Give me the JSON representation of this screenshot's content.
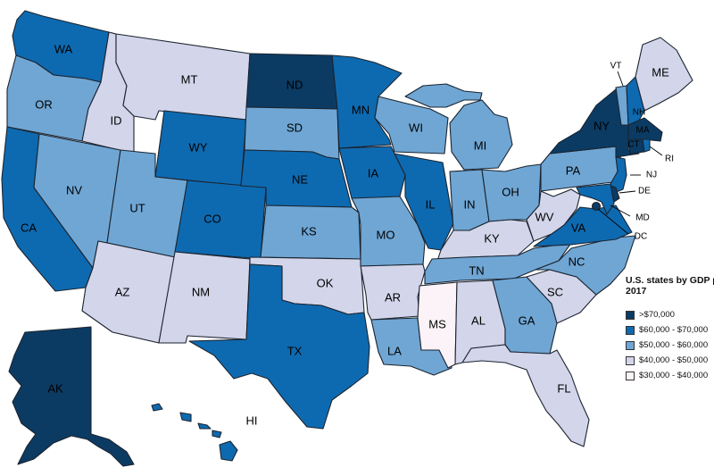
{
  "legend": {
    "title_line1": "U.S. states by GDP p",
    "title_line2": "2017",
    "items": [
      {
        "label": ">$70,000",
        "color": "#0b3b63"
      },
      {
        "label": "$60,000 - $70,000",
        "color": "#0e6ab0"
      },
      {
        "label": "$50,000 - $60,000",
        "color": "#6fa6d4"
      },
      {
        "label": "$40,000 - $50,000",
        "color": "#d3d5ea"
      },
      {
        "label": "$30,000 - $40,000",
        "color": "#fbf3f7"
      }
    ]
  },
  "states": [
    {
      "code": "WA",
      "bin": 1
    },
    {
      "code": "OR",
      "bin": 2
    },
    {
      "code": "CA",
      "bin": 1
    },
    {
      "code": "ID",
      "bin": 3
    },
    {
      "code": "NV",
      "bin": 2
    },
    {
      "code": "MT",
      "bin": 3
    },
    {
      "code": "WY",
      "bin": 1
    },
    {
      "code": "UT",
      "bin": 2
    },
    {
      "code": "AZ",
      "bin": 3
    },
    {
      "code": "CO",
      "bin": 1
    },
    {
      "code": "NM",
      "bin": 3
    },
    {
      "code": "ND",
      "bin": 0
    },
    {
      "code": "SD",
      "bin": 2
    },
    {
      "code": "NE",
      "bin": 1
    },
    {
      "code": "KS",
      "bin": 2
    },
    {
      "code": "OK",
      "bin": 3
    },
    {
      "code": "TX",
      "bin": 1
    },
    {
      "code": "MN",
      "bin": 1
    },
    {
      "code": "IA",
      "bin": 1
    },
    {
      "code": "MO",
      "bin": 2
    },
    {
      "code": "AR",
      "bin": 3
    },
    {
      "code": "LA",
      "bin": 2
    },
    {
      "code": "WI",
      "bin": 2
    },
    {
      "code": "IL",
      "bin": 1
    },
    {
      "code": "MI",
      "bin": 2
    },
    {
      "code": "IN",
      "bin": 2
    },
    {
      "code": "OH",
      "bin": 2
    },
    {
      "code": "KY",
      "bin": 3
    },
    {
      "code": "TN",
      "bin": 2
    },
    {
      "code": "MS",
      "bin": 4
    },
    {
      "code": "AL",
      "bin": 3
    },
    {
      "code": "GA",
      "bin": 2
    },
    {
      "code": "FL",
      "bin": 3
    },
    {
      "code": "SC",
      "bin": 3
    },
    {
      "code": "NC",
      "bin": 2
    },
    {
      "code": "VA",
      "bin": 1
    },
    {
      "code": "WV",
      "bin": 3
    },
    {
      "code": "PA",
      "bin": 2
    },
    {
      "code": "NY",
      "bin": 0
    },
    {
      "code": "VT",
      "bin": 2
    },
    {
      "code": "NH",
      "bin": 1
    },
    {
      "code": "ME",
      "bin": 3
    },
    {
      "code": "MA",
      "bin": 0
    },
    {
      "code": "CT",
      "bin": 0
    },
    {
      "code": "RI",
      "bin": 1
    },
    {
      "code": "NJ",
      "bin": 1
    },
    {
      "code": "DE",
      "bin": 0
    },
    {
      "code": "MD",
      "bin": 1
    },
    {
      "code": "DC",
      "bin": 0
    },
    {
      "code": "AK",
      "bin": 0
    },
    {
      "code": "HI",
      "bin": 1
    }
  ]
}
